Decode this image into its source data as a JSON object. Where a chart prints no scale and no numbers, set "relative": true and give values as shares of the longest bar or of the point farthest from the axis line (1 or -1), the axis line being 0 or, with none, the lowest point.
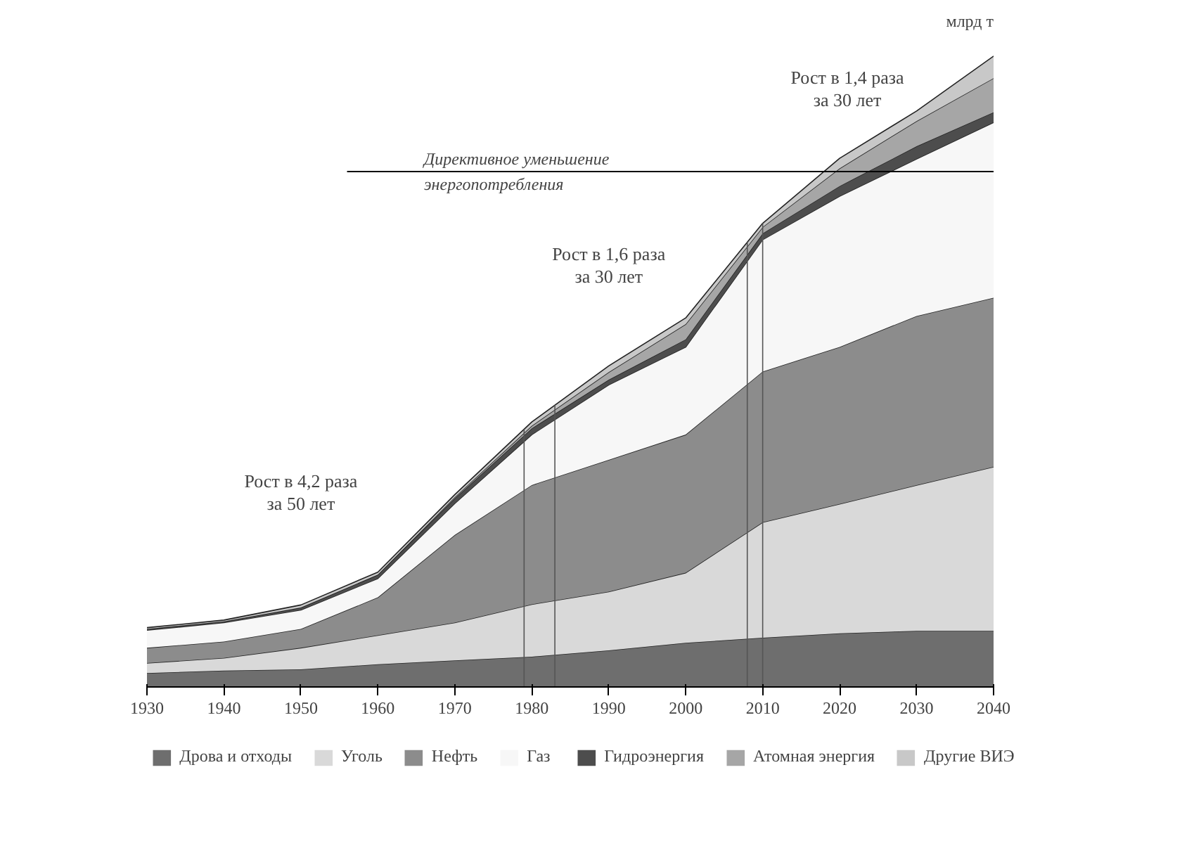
{
  "chart_data": {
    "type": "area",
    "stacked": true,
    "relative": true,
    "ylabel": "млрд т",
    "x": [
      1930,
      1940,
      1950,
      1960,
      1970,
      1980,
      1990,
      2000,
      2010,
      2020,
      2030,
      2040
    ],
    "xlim": [
      1930,
      2040
    ],
    "xticks": [
      1930,
      1940,
      1950,
      1960,
      1970,
      1980,
      1990,
      2000,
      2010,
      2020,
      2030,
      2040
    ],
    "series": [
      {
        "name": "Дрова и отходы",
        "color": "#6e6e6e",
        "values": [
          0.022,
          0.026,
          0.028,
          0.036,
          0.042,
          0.048,
          0.058,
          0.07,
          0.078,
          0.085,
          0.089,
          0.089
        ]
      },
      {
        "name": "Уголь",
        "color": "#d9d9d9",
        "values": [
          0.016,
          0.02,
          0.034,
          0.046,
          0.06,
          0.083,
          0.093,
          0.111,
          0.183,
          0.205,
          0.231,
          0.26
        ]
      },
      {
        "name": "Нефть",
        "color": "#8c8c8c",
        "values": [
          0.024,
          0.026,
          0.03,
          0.06,
          0.139,
          0.189,
          0.209,
          0.219,
          0.239,
          0.249,
          0.268,
          0.268
        ]
      },
      {
        "name": "Газ",
        "color": "#f7f7f7",
        "values": [
          0.028,
          0.03,
          0.03,
          0.03,
          0.05,
          0.08,
          0.119,
          0.139,
          0.209,
          0.239,
          0.249,
          0.278
        ]
      },
      {
        "name": "Гидроэнергия",
        "color": "#4d4d4d",
        "values": [
          0.002,
          0.002,
          0.004,
          0.006,
          0.008,
          0.01,
          0.008,
          0.012,
          0.01,
          0.016,
          0.02,
          0.016
        ]
      },
      {
        "name": "Атомная энергия",
        "color": "#a6a6a6",
        "values": [
          0.0,
          0.0,
          0.0,
          0.0,
          0.002,
          0.004,
          0.012,
          0.024,
          0.01,
          0.028,
          0.04,
          0.054
        ]
      },
      {
        "name": "Другие ВИЭ",
        "color": "#c8c8c8",
        "values": [
          0.002,
          0.002,
          0.004,
          0.004,
          0.004,
          0.006,
          0.01,
          0.01,
          0.006,
          0.016,
          0.016,
          0.035
        ]
      }
    ],
    "ref_lines": [
      {
        "axis": "y",
        "value": 0.817,
        "label": "Директивное уменьшение энергопотребления",
        "color": "#000000"
      },
      {
        "axis": "x",
        "value": 1979,
        "color": "#555555"
      },
      {
        "axis": "x",
        "value": 1983,
        "color": "#555555"
      },
      {
        "axis": "x",
        "value": 2008,
        "color": "#555555"
      },
      {
        "axis": "x",
        "value": 2010,
        "color": "#555555"
      }
    ],
    "annotations": [
      "Рост в 4,2 раза за 50 лет",
      "Рост в 1,6 раза за 30 лет",
      "Рост в 1,4 раза за 30 лет"
    ],
    "legend": "bottom",
    "grid": false
  }
}
